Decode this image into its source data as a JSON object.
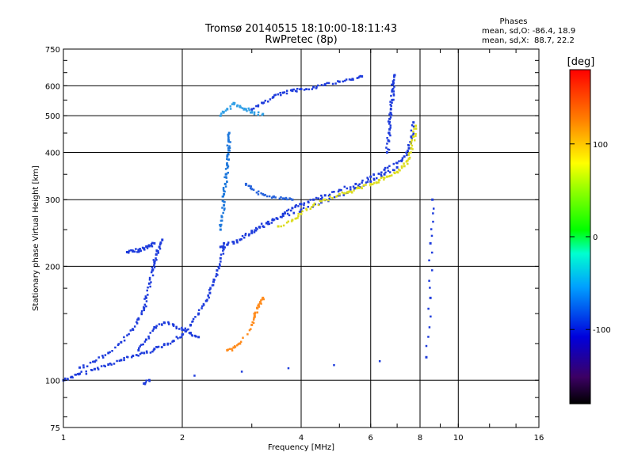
{
  "chart_data": {
    "type": "scatter",
    "title": "Tromsø 20140515 18:10:00-18:11:43",
    "subtitle": "RwPretec (8p)",
    "xlabel": "Frequency [MHz]",
    "ylabel": "Stationary phase Virtual Height [km]",
    "x_scale": "log",
    "y_scale": "log",
    "xlim": [
      1,
      16
    ],
    "ylim": [
      75,
      750
    ],
    "x_ticks": [
      1,
      2,
      4,
      6,
      8,
      10,
      16
    ],
    "y_ticks": [
      75,
      100,
      200,
      300,
      400,
      500,
      600,
      750
    ],
    "grid": true,
    "stats": {
      "heading": "Phases",
      "line_o": "mean, sd,O: -86.4, 18.9",
      "line_x": "mean, sd,X:  88.7, 22.2"
    },
    "colorbar": {
      "label": "[deg]",
      "range": [
        -180,
        180
      ],
      "ticks": [
        "100",
        "0",
        "-100"
      ],
      "tick_values": [
        100,
        0,
        -100
      ]
    },
    "traces": [
      {
        "name": "",
        "color": "#1e3cdc",
        "points": [
          [
            1.0,
            100
          ],
          [
            1.05,
            102
          ],
          [
            1.1,
            104
          ],
          [
            1.2,
            107
          ],
          [
            1.3,
            110
          ],
          [
            1.4,
            113
          ],
          [
            1.5,
            116
          ],
          [
            1.6,
            118
          ],
          [
            1.7,
            121
          ],
          [
            1.8,
            124
          ],
          [
            1.9,
            127
          ],
          [
            2.0,
            132
          ],
          [
            2.1,
            140
          ],
          [
            2.2,
            150
          ],
          [
            2.3,
            162
          ],
          [
            2.35,
            170
          ],
          [
            2.4,
            182
          ],
          [
            2.45,
            195
          ],
          [
            2.5,
            210
          ],
          [
            2.55,
            230
          ]
        ]
      },
      {
        "name": "",
        "color": "#1e3cdc",
        "points": [
          [
            1.1,
            108
          ],
          [
            1.2,
            112
          ],
          [
            1.3,
            118
          ],
          [
            1.4,
            126
          ],
          [
            1.5,
            136
          ],
          [
            1.55,
            145
          ],
          [
            1.6,
            155
          ],
          [
            1.62,
            165
          ],
          [
            1.65,
            180
          ],
          [
            1.68,
            195
          ],
          [
            1.7,
            205
          ],
          [
            1.72,
            215
          ],
          [
            1.75,
            225
          ],
          [
            1.78,
            235
          ]
        ]
      },
      {
        "name": "",
        "color": "#1e3cdc",
        "points": [
          [
            1.45,
            218
          ],
          [
            1.5,
            219
          ],
          [
            1.55,
            221
          ],
          [
            1.6,
            223
          ],
          [
            1.65,
            226
          ],
          [
            1.7,
            230
          ]
        ]
      },
      {
        "name": "",
        "color": "#1e3cdc",
        "points": [
          [
            1.55,
            120
          ],
          [
            1.62,
            128
          ],
          [
            1.7,
            138
          ],
          [
            1.8,
            142
          ],
          [
            1.9,
            140
          ],
          [
            2.0,
            136
          ],
          [
            2.1,
            133
          ],
          [
            2.2,
            130
          ]
        ]
      },
      {
        "name": "",
        "color": "#1e78dc",
        "points": [
          [
            2.5,
            250
          ],
          [
            2.52,
            270
          ],
          [
            2.55,
            290
          ],
          [
            2.55,
            310
          ],
          [
            2.57,
            330
          ],
          [
            2.58,
            350
          ],
          [
            2.6,
            370
          ],
          [
            2.6,
            390
          ],
          [
            2.62,
            410
          ],
          [
            2.62,
            430
          ],
          [
            2.63,
            450
          ]
        ]
      },
      {
        "name": "",
        "color": "#32a0e6",
        "points": [
          [
            2.5,
            500
          ],
          [
            2.6,
            520
          ],
          [
            2.7,
            540
          ],
          [
            2.8,
            530
          ],
          [
            2.9,
            520
          ],
          [
            3.0,
            510
          ],
          [
            3.2,
            505
          ]
        ]
      },
      {
        "name": "",
        "color": "#1e3cdc",
        "points": [
          [
            3.0,
            520
          ],
          [
            3.2,
            540
          ],
          [
            3.4,
            560
          ],
          [
            3.6,
            575
          ],
          [
            3.8,
            582
          ],
          [
            4.0,
            588
          ],
          [
            4.3,
            595
          ],
          [
            4.6,
            605
          ],
          [
            5.0,
            615
          ],
          [
            5.4,
            625
          ],
          [
            5.7,
            635
          ]
        ]
      },
      {
        "name": "",
        "color": "#1e3cdc",
        "points": [
          [
            2.5,
            225
          ],
          [
            2.6,
            228
          ],
          [
            2.8,
            235
          ],
          [
            3.0,
            245
          ],
          [
            3.2,
            255
          ],
          [
            3.4,
            265
          ],
          [
            3.6,
            275
          ],
          [
            3.8,
            285
          ],
          [
            4.0,
            292
          ],
          [
            4.3,
            300
          ],
          [
            4.6,
            308
          ],
          [
            5.0,
            318
          ],
          [
            5.5,
            330
          ],
          [
            6.0,
            345
          ],
          [
            6.5,
            360
          ],
          [
            7.0,
            375
          ],
          [
            7.3,
            390
          ],
          [
            7.5,
            410
          ],
          [
            7.6,
            440
          ],
          [
            7.7,
            480
          ]
        ]
      },
      {
        "name": "",
        "color": "#1e3cdc",
        "points": [
          [
            2.7,
            230
          ],
          [
            3.0,
            248
          ],
          [
            3.3,
            262
          ],
          [
            3.6,
            272
          ],
          [
            4.0,
            282
          ],
          [
            4.5,
            295
          ],
          [
            5.0,
            308
          ],
          [
            5.5,
            322
          ],
          [
            6.0,
            335
          ],
          [
            6.5,
            350
          ],
          [
            7.0,
            365
          ]
        ]
      },
      {
        "name": "",
        "color": "#dcdc1e",
        "points": [
          [
            3.5,
            255
          ],
          [
            3.8,
            265
          ],
          [
            4.0,
            275
          ],
          [
            4.3,
            290
          ],
          [
            4.6,
            300
          ],
          [
            5.0,
            310
          ],
          [
            5.3,
            315
          ],
          [
            5.6,
            322
          ],
          [
            6.0,
            330
          ],
          [
            6.3,
            338
          ],
          [
            6.6,
            345
          ],
          [
            7.0,
            355
          ],
          [
            7.3,
            368
          ],
          [
            7.5,
            385
          ],
          [
            7.6,
            410
          ],
          [
            7.7,
            440
          ],
          [
            7.8,
            470
          ]
        ]
      },
      {
        "name": "",
        "color": "#1e3cdc",
        "points": [
          [
            6.6,
            400
          ],
          [
            6.65,
            430
          ],
          [
            6.7,
            460
          ],
          [
            6.7,
            490
          ],
          [
            6.75,
            520
          ],
          [
            6.8,
            550
          ],
          [
            6.8,
            580
          ],
          [
            6.85,
            610
          ],
          [
            6.9,
            640
          ]
        ]
      },
      {
        "name": "",
        "color": "#2864dc",
        "points": [
          [
            2.9,
            330
          ],
          [
            3.0,
            320
          ],
          [
            3.2,
            310
          ],
          [
            3.4,
            305
          ],
          [
            3.6,
            302
          ],
          [
            3.8,
            300
          ]
        ]
      },
      {
        "name": "",
        "color": "#ff8c1e",
        "points": [
          [
            2.6,
            120
          ],
          [
            2.7,
            122
          ],
          [
            2.8,
            125
          ],
          [
            3.0,
            140
          ],
          [
            3.05,
            148
          ],
          [
            3.1,
            155
          ],
          [
            3.15,
            160
          ],
          [
            3.2,
            165
          ]
        ]
      },
      {
        "name": "",
        "color": "#1e3cdc",
        "points": [
          [
            1.6,
            98
          ],
          [
            1.65,
            100
          ],
          [
            8.3,
            115
          ],
          [
            8.5,
            165
          ],
          [
            8.5,
            230
          ],
          [
            8.6,
            300
          ]
        ]
      }
    ]
  }
}
